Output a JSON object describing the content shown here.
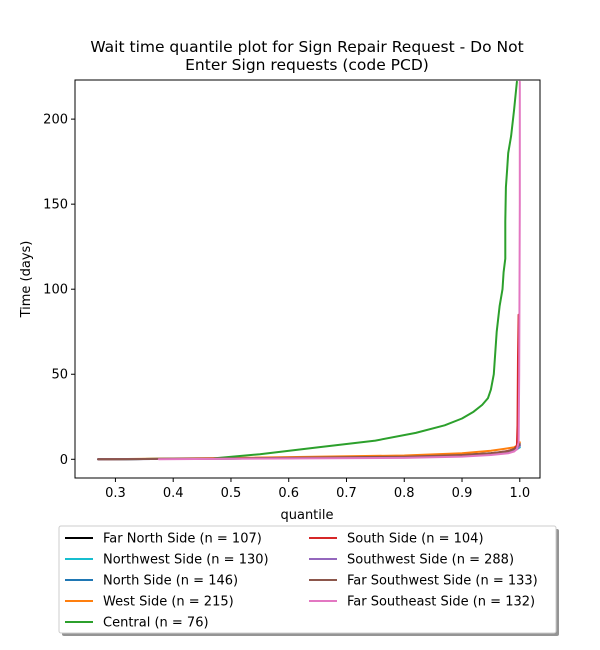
{
  "chart_data": {
    "type": "line",
    "title_lines": [
      "Wait time quantile plot for Sign Repair Request - Do Not",
      "Enter Sign  requests (code PCD)"
    ],
    "xlabel": "quantile",
    "ylabel": "Time (days)",
    "xlim": [
      0.23,
      1.035
    ],
    "ylim": [
      -11,
      223
    ],
    "xticks": [
      0.3,
      0.4,
      0.5,
      0.6,
      0.7,
      0.8,
      0.9,
      1.0
    ],
    "xtick_labels": [
      "0.3",
      "0.4",
      "0.5",
      "0.6",
      "0.7",
      "0.8",
      "0.9",
      "1.0"
    ],
    "yticks": [
      0,
      50,
      100,
      150,
      200
    ],
    "ytick_labels": [
      "0",
      "50",
      "100",
      "150",
      "200"
    ],
    "grid": false,
    "legend_position": "below",
    "series": [
      {
        "name": "Far North Side (n = 107)",
        "color": "#000000",
        "x": [
          0.27,
          0.5,
          0.8,
          0.9,
          0.95,
          0.98,
          0.99,
          0.995,
          1.0
        ],
        "y": [
          0,
          0.5,
          1.5,
          2.5,
          3.5,
          4.5,
          5,
          6,
          8
        ]
      },
      {
        "name": "Northwest Side (n = 130)",
        "color": "#17becf",
        "x": [
          0.27,
          0.5,
          0.8,
          0.9,
          0.95,
          0.98,
          0.99,
          0.995,
          1.0
        ],
        "y": [
          0,
          0.4,
          1.2,
          2.2,
          3.2,
          4.2,
          5,
          6,
          7
        ]
      },
      {
        "name": "North Side (n = 146)",
        "color": "#1f77b4",
        "x": [
          0.27,
          0.5,
          0.8,
          0.9,
          0.95,
          0.98,
          0.99,
          0.995,
          1.0
        ],
        "y": [
          0,
          0.5,
          1.3,
          2.3,
          3.3,
          4.3,
          5.5,
          7,
          9
        ]
      },
      {
        "name": "West Side (n = 215)",
        "color": "#ff7f0e",
        "x": [
          0.28,
          0.5,
          0.8,
          0.9,
          0.95,
          0.97,
          0.99,
          0.995,
          1.0
        ],
        "y": [
          0,
          0.8,
          2.2,
          3.5,
          5,
          6,
          7,
          8,
          10
        ]
      },
      {
        "name": "Central (n = 76)",
        "color": "#2ca02c",
        "x": [
          0.27,
          0.47,
          0.55,
          0.65,
          0.75,
          0.82,
          0.87,
          0.9,
          0.92,
          0.935,
          0.945,
          0.95,
          0.955,
          0.96,
          0.965,
          0.97,
          0.972,
          0.975,
          0.975,
          0.976,
          0.978,
          0.98,
          0.985,
          0.99,
          0.995
        ],
        "y": [
          0,
          0.5,
          3,
          7,
          11,
          15.5,
          20,
          24,
          28,
          32,
          36,
          41,
          50,
          75,
          90,
          100,
          110,
          118,
          140,
          160,
          170,
          180,
          190,
          205,
          222
        ]
      },
      {
        "name": "South Side (n = 104)",
        "color": "#d62728",
        "x": [
          0.27,
          0.5,
          0.8,
          0.9,
          0.95,
          0.98,
          0.99,
          0.995,
          0.996,
          0.997,
          0.998
        ],
        "y": [
          0,
          0.4,
          1.3,
          2.3,
          3.3,
          5,
          6,
          8,
          20,
          60,
          85
        ]
      },
      {
        "name": "Southwest Side (n = 288)",
        "color": "#9467bd",
        "x": [
          0.27,
          0.5,
          0.8,
          0.9,
          0.95,
          0.98,
          0.99,
          0.995,
          1.0
        ],
        "y": [
          0,
          0.4,
          1.3,
          2.2,
          3,
          4,
          5,
          6,
          8
        ]
      },
      {
        "name": "Far Southwest Side (n = 133)",
        "color": "#8c564b",
        "x": [
          0.27,
          0.5,
          0.8,
          0.9,
          0.95,
          0.98,
          0.99,
          0.995,
          1.0
        ],
        "y": [
          0,
          0.5,
          1.5,
          2.5,
          3.6,
          4.8,
          6,
          7,
          9
        ]
      },
      {
        "name": "Far Southeast Side (n = 132)",
        "color": "#e377c2",
        "x": [
          0.375,
          0.5,
          0.8,
          0.9,
          0.95,
          0.98,
          0.99,
          0.995,
          0.998,
          0.999,
          1.0,
          1.0
        ],
        "y": [
          0,
          0.3,
          0.8,
          1.6,
          2.5,
          3.5,
          4.5,
          6,
          10,
          50,
          150,
          222
        ]
      }
    ]
  }
}
